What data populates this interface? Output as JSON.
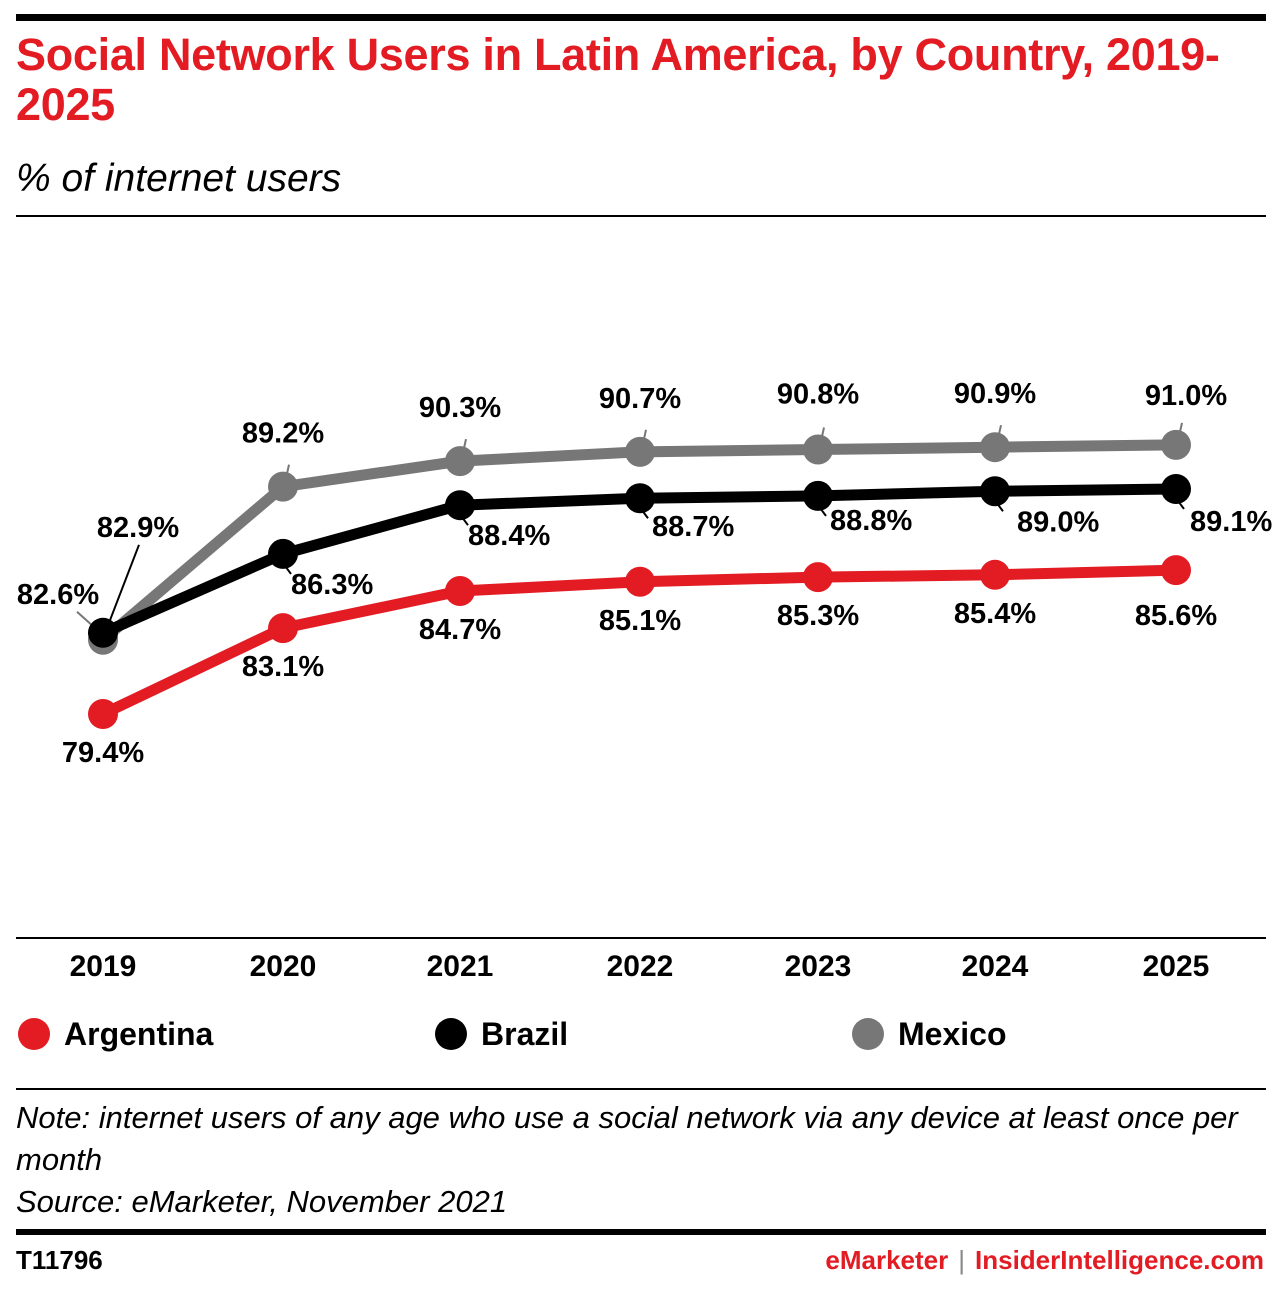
{
  "header": {
    "title": "Social Network Users in Latin America, by Country, 2019-2025",
    "subtitle": "% of internet users"
  },
  "chart_data": {
    "type": "line",
    "categories": [
      "2019",
      "2020",
      "2021",
      "2022",
      "2023",
      "2024",
      "2025"
    ],
    "series": [
      {
        "name": "Argentina",
        "color": "#e31b23",
        "values": [
          79.4,
          83.1,
          84.7,
          85.1,
          85.3,
          85.4,
          85.6
        ],
        "labels": [
          "79.4%",
          "83.1%",
          "84.7%",
          "85.1%",
          "85.3%",
          "85.4%",
          "85.6%"
        ]
      },
      {
        "name": "Brazil",
        "color": "#000000",
        "values": [
          82.9,
          86.3,
          88.4,
          88.7,
          88.8,
          89.0,
          89.1
        ],
        "labels": [
          "82.9%",
          "86.3%",
          "88.4%",
          "88.7%",
          "88.8%",
          "89.0%",
          "89.1%"
        ]
      },
      {
        "name": "Mexico",
        "color": "#777777",
        "values": [
          82.6,
          89.2,
          90.3,
          90.7,
          90.8,
          90.9,
          91.0
        ],
        "labels": [
          "82.6%",
          "89.2%",
          "90.3%",
          "90.7%",
          "90.8%",
          "90.9%",
          "91.0%"
        ]
      }
    ],
    "ylim": [
      70,
      95
    ],
    "grid": false,
    "legend_position": "bottom"
  },
  "footer": {
    "note": "Note: internet users of any age who use a social network via any device at least once per month",
    "source": "Source: eMarketer, November 2021",
    "chart_id": "T11796",
    "brand_primary": "eMarketer",
    "brand_separator": "|",
    "brand_secondary": "InsiderIntelligence.com"
  }
}
